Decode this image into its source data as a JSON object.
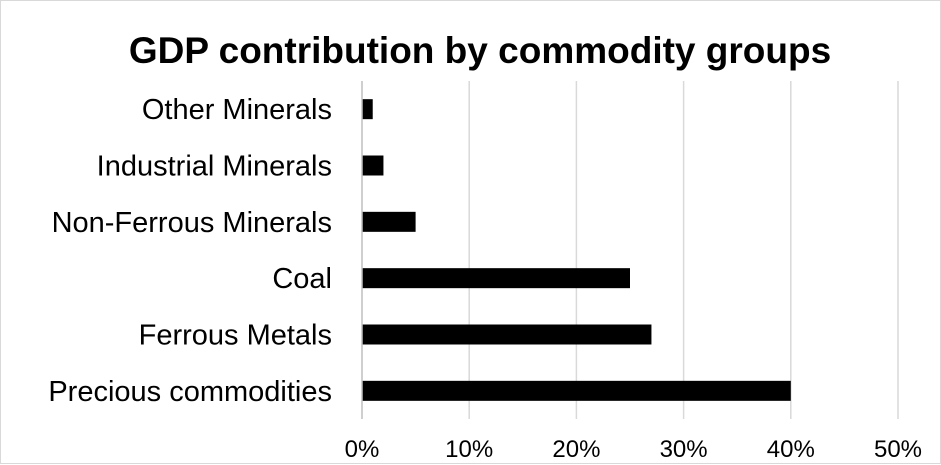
{
  "chart_data": {
    "type": "bar",
    "orientation": "horizontal",
    "title": "GDP contribution by commodity groups",
    "xlabel": "",
    "ylabel": "",
    "categories": [
      "Other Minerals",
      "Industrial Minerals",
      "Non-Ferrous Minerals",
      "Coal",
      "Ferrous Metals",
      "Precious commodities"
    ],
    "values": [
      1,
      2,
      5,
      25,
      27,
      40
    ],
    "value_unit": "%",
    "xlim": [
      0,
      50
    ],
    "x_ticks": [
      "0%",
      "10%",
      "20%",
      "30%",
      "40%",
      "50%"
    ],
    "x_tick_values": [
      0,
      10,
      20,
      30,
      40,
      50
    ],
    "grid": true,
    "legend": "none",
    "bar_color": "#000000",
    "grid_color": "#d9d9d9"
  }
}
